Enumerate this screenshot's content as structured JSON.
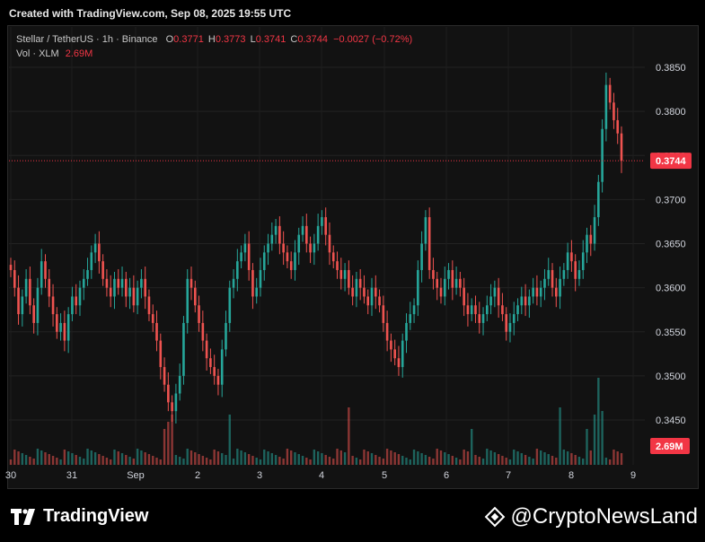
{
  "header": {
    "title": "Created with TradingView.com, Sep 08, 2025 19:55 UTC"
  },
  "legend": {
    "symbol": "Stellar / TetherUS · 1h · Binance",
    "o_label": "O",
    "o_value": "0.3771",
    "h_label": "H",
    "h_value": "0.3773",
    "l_label": "L",
    "l_value": "0.3741",
    "c_label": "C",
    "c_value": "0.3744",
    "change": "−0.0027 (−0.72%)",
    "vol_label": "Vol · XLM",
    "vol_value": "2.69M"
  },
  "footer": {
    "brand": "TradingView",
    "watermark": "@CryptoNewsLand"
  },
  "colors": {
    "up": "#26a69a",
    "down": "#ef5350",
    "badge": "#f23645",
    "background": "#121212"
  },
  "chart_data": {
    "type": "candlestick",
    "x_ticks": [
      "30",
      "31",
      "Sep",
      "2",
      "3",
      "4",
      "5",
      "6",
      "7",
      "8",
      "9"
    ],
    "y_ticks": [
      "0.3850",
      "0.3800",
      "0.3750",
      "0.3700",
      "0.3650",
      "0.3600",
      "0.3550",
      "0.3500",
      "0.3450"
    ],
    "ylim": [
      0.3405,
      0.3885
    ],
    "current_price": 0.3744,
    "current_price_label": "0.3744",
    "volume_label": "2.69M",
    "close_series": [
      0.362,
      0.36,
      0.357,
      0.359,
      0.361,
      0.358,
      0.356,
      0.36,
      0.363,
      0.361,
      0.359,
      0.357,
      0.355,
      0.356,
      0.354,
      0.357,
      0.359,
      0.358,
      0.36,
      0.361,
      0.362,
      0.364,
      0.365,
      0.363,
      0.361,
      0.36,
      0.359,
      0.361,
      0.36,
      0.361,
      0.359,
      0.36,
      0.358,
      0.36,
      0.361,
      0.359,
      0.357,
      0.356,
      0.354,
      0.351,
      0.349,
      0.347,
      0.346,
      0.348,
      0.35,
      0.356,
      0.361,
      0.36,
      0.358,
      0.356,
      0.354,
      0.352,
      0.351,
      0.35,
      0.349,
      0.353,
      0.356,
      0.36,
      0.361,
      0.363,
      0.364,
      0.365,
      0.362,
      0.359,
      0.36,
      0.362,
      0.364,
      0.365,
      0.366,
      0.367,
      0.365,
      0.364,
      0.363,
      0.362,
      0.364,
      0.366,
      0.367,
      0.365,
      0.364,
      0.365,
      0.367,
      0.368,
      0.366,
      0.364,
      0.363,
      0.362,
      0.361,
      0.362,
      0.36,
      0.359,
      0.361,
      0.36,
      0.359,
      0.358,
      0.36,
      0.359,
      0.358,
      0.356,
      0.354,
      0.353,
      0.352,
      0.351,
      0.354,
      0.356,
      0.357,
      0.358,
      0.362,
      0.365,
      0.368,
      0.362,
      0.361,
      0.36,
      0.359,
      0.361,
      0.362,
      0.36,
      0.361,
      0.36,
      0.358,
      0.357,
      0.358,
      0.357,
      0.356,
      0.357,
      0.358,
      0.359,
      0.36,
      0.358,
      0.357,
      0.355,
      0.356,
      0.357,
      0.358,
      0.359,
      0.358,
      0.359,
      0.36,
      0.359,
      0.36,
      0.361,
      0.362,
      0.36,
      0.359,
      0.361,
      0.362,
      0.364,
      0.363,
      0.361,
      0.362,
      0.364,
      0.366,
      0.365,
      0.368,
      0.372,
      0.378,
      0.383,
      0.381,
      0.379,
      0.3775,
      0.3744
    ]
  }
}
